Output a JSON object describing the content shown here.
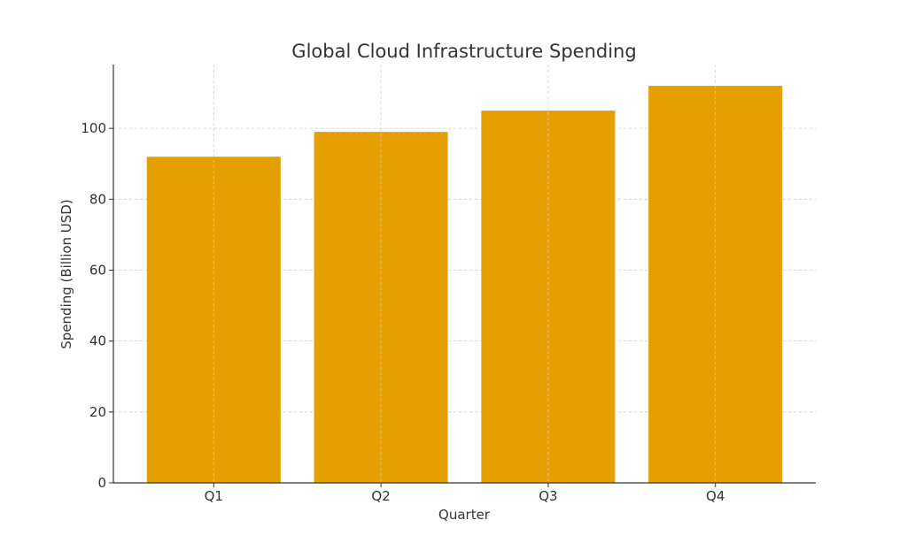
{
  "chart_data": {
    "type": "bar",
    "title": "Global Cloud Infrastructure Spending",
    "xlabel": "Quarter",
    "ylabel": "Spending (Billion USD)",
    "categories": [
      "Q1",
      "Q2",
      "Q3",
      "Q4"
    ],
    "values": [
      92,
      99,
      105,
      112
    ],
    "ylim": [
      0,
      118
    ],
    "yticks": [
      0,
      20,
      40,
      60,
      80,
      100
    ],
    "grid": true,
    "bar_color": "#e69f00"
  }
}
